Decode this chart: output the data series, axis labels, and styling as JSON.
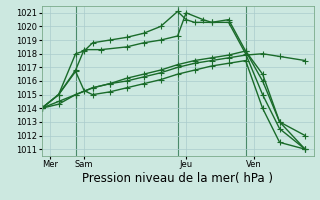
{
  "background_color": "#cce8e0",
  "grid_color": "#aacccc",
  "line_color": "#1a6b2a",
  "vline_color": "#4a8a6a",
  "title": "Pression niveau de la mer( hPa )",
  "ylim": [
    1010.5,
    1021.5
  ],
  "xlim": [
    0,
    16
  ],
  "yticks": [
    1011,
    1012,
    1013,
    1014,
    1015,
    1016,
    1017,
    1018,
    1019,
    1020,
    1021
  ],
  "day_labels": [
    "Mer",
    "Sam",
    "Jeu",
    "Ven"
  ],
  "day_positions": [
    0.5,
    2.5,
    8.5,
    12.5
  ],
  "vlines": [
    2.0,
    8.0,
    12.0
  ],
  "series": [
    {
      "x": [
        0,
        1,
        2,
        2.5,
        3,
        4,
        5,
        6,
        7,
        8,
        8.5,
        9,
        10,
        11,
        12,
        13,
        14,
        15.5
      ],
      "y": [
        1014.0,
        1015.0,
        1018.0,
        1018.2,
        1018.8,
        1019.0,
        1019.2,
        1019.5,
        1020.0,
        1021.1,
        1020.5,
        1020.3,
        1020.3,
        1020.5,
        1018.2,
        1016.5,
        1013.0,
        1011.0
      ]
    },
    {
      "x": [
        0,
        1,
        2,
        2.5,
        3.5,
        5,
        6,
        7,
        8,
        8.5,
        9.5,
        10,
        11,
        12,
        13,
        14,
        15.5
      ],
      "y": [
        1014.0,
        1015.0,
        1016.8,
        1018.3,
        1018.3,
        1018.5,
        1018.8,
        1019.0,
        1019.3,
        1021.0,
        1020.5,
        1020.3,
        1020.3,
        1018.0,
        1015.0,
        1012.5,
        1011.0
      ]
    },
    {
      "x": [
        0,
        1,
        2,
        3,
        4,
        5,
        6,
        7,
        8,
        9,
        10,
        11,
        12,
        13,
        14,
        15.5
      ],
      "y": [
        1014.0,
        1014.3,
        1015.0,
        1015.5,
        1015.8,
        1016.0,
        1016.3,
        1016.6,
        1017.0,
        1017.3,
        1017.5,
        1017.7,
        1017.9,
        1018.0,
        1017.8,
        1017.5
      ]
    },
    {
      "x": [
        0,
        1,
        2,
        3,
        4,
        5,
        6,
        7,
        8,
        9,
        10,
        11,
        12,
        13,
        14,
        15.5
      ],
      "y": [
        1014.0,
        1014.5,
        1015.0,
        1015.5,
        1015.8,
        1016.2,
        1016.5,
        1016.8,
        1017.2,
        1017.5,
        1017.7,
        1017.9,
        1018.2,
        1016.0,
        1013.0,
        1012.0
      ]
    },
    {
      "x": [
        0,
        1,
        2,
        2.5,
        3,
        4,
        5,
        6,
        7,
        8,
        9,
        10,
        11,
        12,
        13,
        14,
        15.5
      ],
      "y": [
        1014.0,
        1015.0,
        1016.7,
        1015.3,
        1015.0,
        1015.2,
        1015.5,
        1015.8,
        1016.1,
        1016.5,
        1016.8,
        1017.1,
        1017.3,
        1017.5,
        1014.0,
        1011.5,
        1011.0
      ]
    }
  ],
  "marker": "+",
  "markersize": 4,
  "linewidth": 1.0,
  "title_fontsize": 8.5,
  "tick_fontsize": 6.0
}
